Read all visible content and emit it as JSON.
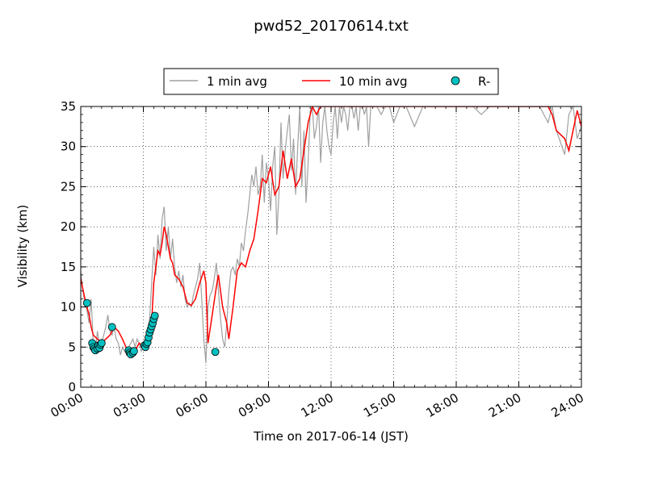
{
  "chart_data": {
    "type": "line",
    "title": "pwd52_20170614.txt",
    "xlabel": "Time on 2017-06-14 (JST)",
    "ylabel": "Visibility (km)",
    "xlim": [
      0,
      24
    ],
    "ylim": [
      0,
      35
    ],
    "x_ticks": [
      0,
      3,
      6,
      9,
      12,
      15,
      18,
      21,
      24
    ],
    "x_tick_labels": [
      "00:00",
      "03:00",
      "06:00",
      "09:00",
      "12:00",
      "15:00",
      "18:00",
      "21:00",
      "24:00"
    ],
    "y_ticks": [
      0,
      5,
      10,
      15,
      20,
      25,
      30,
      35
    ],
    "y_tick_labels": [
      "0",
      "5",
      "10",
      "15",
      "20",
      "25",
      "30",
      "35"
    ],
    "grid": true,
    "legend_position": "top-center, outside plot",
    "series": [
      {
        "name": "1 min avg",
        "kind": "line",
        "color": "#a0a0a0",
        "x": [
          0.0,
          0.1,
          0.2,
          0.3,
          0.4,
          0.5,
          0.6,
          0.7,
          0.8,
          0.9,
          1.0,
          1.1,
          1.2,
          1.3,
          1.4,
          1.5,
          1.6,
          1.7,
          1.8,
          1.9,
          2.0,
          2.1,
          2.2,
          2.3,
          2.4,
          2.5,
          2.6,
          2.7,
          2.8,
          2.9,
          3.0,
          3.1,
          3.2,
          3.3,
          3.4,
          3.5,
          3.6,
          3.7,
          3.8,
          3.9,
          4.0,
          4.1,
          4.2,
          4.3,
          4.4,
          4.5,
          4.6,
          4.7,
          4.8,
          4.9,
          5.0,
          5.1,
          5.2,
          5.3,
          5.4,
          5.5,
          5.6,
          5.7,
          5.8,
          5.9,
          6.0,
          6.1,
          6.2,
          6.3,
          6.4,
          6.5,
          6.6,
          6.7,
          6.8,
          6.9,
          7.0,
          7.1,
          7.2,
          7.3,
          7.4,
          7.5,
          7.6,
          7.7,
          7.8,
          7.9,
          8.0,
          8.1,
          8.2,
          8.3,
          8.4,
          8.5,
          8.6,
          8.7,
          8.8,
          8.9,
          9.0,
          9.1,
          9.2,
          9.3,
          9.4,
          9.5,
          9.6,
          9.7,
          9.8,
          9.9,
          10.0,
          10.1,
          10.2,
          10.3,
          10.4,
          10.5,
          10.6,
          10.7,
          10.8,
          10.9,
          11.0,
          11.1,
          11.2,
          11.3,
          11.4,
          11.5,
          11.6,
          11.7,
          11.8,
          11.9,
          12.0,
          12.1,
          12.2,
          12.3,
          12.4,
          12.5,
          12.6,
          12.7,
          12.8,
          12.9,
          13.0,
          13.1,
          13.2,
          13.3,
          13.4,
          13.5,
          13.6,
          13.7,
          13.8,
          13.9,
          14.0,
          14.2,
          14.4,
          14.6,
          14.8,
          15.0,
          15.3,
          15.6,
          16.0,
          16.4,
          16.8,
          17.2,
          17.6,
          18.0,
          18.2,
          18.5,
          18.8,
          19.2,
          19.6,
          20.0,
          20.4,
          20.8,
          21.2,
          21.6,
          22.0,
          22.2,
          22.4,
          22.6,
          22.8,
          23.0,
          23.2,
          23.4,
          23.6,
          23.8,
          24.0
        ],
        "y": [
          14.5,
          12.0,
          10.5,
          9.5,
          8.0,
          11.0,
          5.5,
          4.5,
          7.0,
          5.0,
          5.5,
          6.5,
          7.5,
          9.0,
          7.0,
          6.5,
          7.5,
          6.0,
          5.5,
          4.0,
          5.0,
          4.5,
          4.0,
          5.0,
          5.5,
          6.0,
          5.0,
          6.0,
          5.5,
          4.5,
          5.0,
          6.0,
          7.0,
          8.5,
          13.0,
          17.5,
          14.0,
          19.0,
          16.0,
          21.0,
          22.5,
          17.0,
          20.0,
          16.0,
          18.5,
          15.0,
          13.0,
          14.5,
          12.5,
          14.0,
          11.0,
          10.0,
          10.5,
          10.0,
          11.5,
          12.5,
          13.5,
          15.5,
          11.0,
          6.0,
          3.0,
          10.0,
          11.5,
          12.0,
          13.5,
          15.5,
          12.0,
          8.5,
          6.0,
          5.0,
          8.0,
          12.0,
          14.5,
          15.0,
          14.0,
          16.0,
          15.0,
          18.0,
          17.0,
          19.5,
          21.5,
          24.0,
          26.5,
          25.0,
          27.5,
          24.0,
          25.0,
          29.0,
          23.0,
          28.0,
          26.0,
          22.0,
          27.5,
          30.0,
          19.0,
          24.0,
          33.0,
          26.0,
          29.5,
          32.0,
          34.0,
          27.0,
          31.0,
          24.0,
          30.0,
          35.0,
          25.0,
          32.0,
          23.0,
          28.0,
          34.5,
          35.0,
          31.0,
          32.5,
          35.0,
          28.0,
          33.0,
          35.0,
          32.0,
          30.0,
          29.0,
          33.0,
          35.0,
          31.0,
          35.0,
          33.0,
          35.0,
          34.0,
          32.0,
          35.0,
          35.0,
          33.5,
          35.0,
          32.0,
          35.0,
          35.0,
          34.0,
          35.0,
          30.0,
          35.0,
          35.0,
          35.0,
          34.0,
          35.0,
          35.0,
          33.0,
          35.0,
          35.0,
          32.5,
          35.0,
          35.0,
          35.0,
          35.0,
          35.0,
          35.0,
          35.0,
          35.0,
          34.0,
          35.0,
          35.0,
          35.0,
          35.0,
          35.0,
          35.0,
          35.0,
          34.0,
          33.0,
          35.0,
          32.0,
          30.5,
          29.0,
          34.0,
          35.0,
          31.0,
          32.5
        ]
      },
      {
        "name": "10 min avg",
        "kind": "line",
        "color": "#ff0000",
        "x": [
          0.0,
          0.2,
          0.4,
          0.5,
          0.6,
          0.8,
          1.0,
          1.2,
          1.4,
          1.6,
          1.8,
          2.0,
          2.2,
          2.4,
          2.6,
          2.8,
          3.0,
          3.2,
          3.4,
          3.5,
          3.6,
          3.7,
          3.8,
          3.9,
          4.0,
          4.1,
          4.2,
          4.3,
          4.4,
          4.5,
          4.7,
          4.9,
          5.1,
          5.3,
          5.5,
          5.7,
          5.9,
          6.0,
          6.1,
          6.3,
          6.5,
          6.6,
          6.8,
          7.0,
          7.1,
          7.3,
          7.5,
          7.7,
          7.9,
          8.1,
          8.3,
          8.5,
          8.7,
          8.9,
          9.1,
          9.3,
          9.5,
          9.7,
          9.9,
          10.1,
          10.3,
          10.5,
          10.7,
          10.9,
          11.1,
          11.3,
          11.5,
          11.7,
          11.9,
          12.1,
          12.3,
          12.5,
          12.7,
          12.9,
          13.1,
          13.3,
          13.6,
          14.0,
          14.5,
          15.0,
          15.5,
          16.0,
          16.5,
          17.0,
          17.5,
          18.0,
          18.5,
          19.0,
          19.5,
          20.0,
          20.5,
          21.0,
          21.5,
          21.8,
          22.1,
          22.4,
          22.6,
          22.8,
          23.0,
          23.2,
          23.4,
          23.6,
          23.8,
          24.0
        ],
        "y": [
          13.5,
          11.0,
          9.0,
          7.5,
          6.5,
          6.0,
          5.5,
          6.0,
          6.5,
          7.5,
          7.0,
          6.0,
          4.8,
          4.5,
          4.5,
          5.5,
          5.0,
          5.5,
          8.0,
          13.0,
          15.0,
          17.0,
          16.5,
          18.0,
          20.0,
          19.0,
          17.5,
          16.0,
          15.5,
          14.0,
          13.5,
          12.5,
          10.5,
          10.2,
          11.0,
          13.0,
          14.5,
          13.0,
          5.5,
          9.0,
          12.5,
          14.0,
          10.0,
          8.0,
          6.0,
          10.0,
          14.5,
          15.5,
          15.0,
          17.0,
          18.5,
          22.0,
          26.0,
          25.5,
          27.5,
          24.0,
          25.0,
          29.5,
          26.0,
          28.5,
          25.0,
          26.0,
          29.5,
          33.0,
          35.0,
          34.0,
          35.0,
          35.0,
          35.0,
          35.0,
          35.0,
          35.0,
          35.0,
          35.0,
          35.0,
          35.0,
          35.0,
          35.0,
          35.0,
          35.0,
          35.0,
          35.0,
          35.0,
          35.0,
          35.0,
          35.0,
          35.0,
          35.0,
          35.0,
          35.0,
          35.0,
          35.0,
          35.0,
          35.0,
          35.0,
          35.0,
          34.0,
          32.0,
          31.5,
          31.0,
          29.5,
          32.0,
          34.5,
          32.5
        ]
      },
      {
        "name": "R-",
        "kind": "scatter",
        "color": "#00c0c0",
        "x": [
          0.3,
          0.55,
          0.6,
          0.65,
          0.7,
          0.8,
          0.85,
          0.9,
          0.95,
          1.0,
          1.5,
          2.3,
          2.35,
          2.4,
          2.5,
          2.55,
          3.05,
          3.1,
          3.15,
          3.2,
          3.25,
          3.3,
          3.35,
          3.4,
          3.45,
          3.5,
          3.55,
          6.45
        ],
        "y": [
          10.5,
          5.5,
          5.0,
          4.8,
          4.6,
          4.8,
          5.2,
          4.9,
          5.3,
          5.5,
          7.5,
          4.6,
          4.3,
          4.1,
          4.3,
          4.5,
          5.2,
          5.0,
          5.4,
          5.6,
          6.2,
          6.8,
          7.2,
          7.6,
          8.0,
          8.5,
          8.9,
          4.4
        ]
      }
    ]
  }
}
